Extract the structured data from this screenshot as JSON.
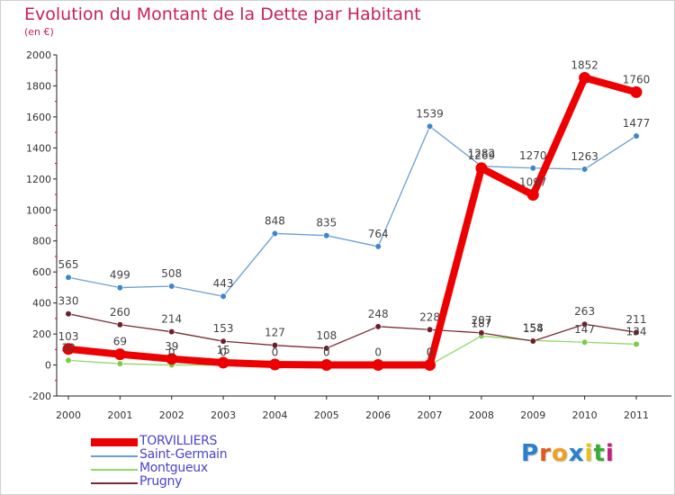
{
  "chart_data": {
    "type": "line",
    "title": "Evolution du Montant de la Dette par Habitant",
    "subtitle": "(en €)",
    "x": [
      "2000",
      "2001",
      "2002",
      "2003",
      "2004",
      "2005",
      "2006",
      "2007",
      "2008",
      "2009",
      "2010",
      "2011"
    ],
    "ylim": [
      -200,
      2000
    ],
    "yticks": [
      -200,
      0,
      200,
      400,
      600,
      800,
      1000,
      1200,
      1400,
      1600,
      1800,
      2000
    ],
    "grid": false,
    "legend_position": "bottom-left",
    "series": [
      {
        "name": "TORVILLIERS",
        "color": "#ee0000",
        "marker_color": "#ee0000",
        "values": [
          103,
          69,
          39,
          15,
          3,
          0,
          0,
          0,
          1269,
          1097,
          1852,
          1760
        ]
      },
      {
        "name": "Saint-Germain",
        "color": "#6a9fd4",
        "marker_color": "#3f86cc",
        "values": [
          565,
          499,
          508,
          443,
          848,
          835,
          764,
          1539,
          1282,
          1270,
          1263,
          1477
        ]
      },
      {
        "name": "Montgueux",
        "color": "#8fd86a",
        "marker_color": "#7acc45",
        "values": [
          30,
          8,
          0,
          0,
          0,
          0,
          0,
          0,
          187,
          158,
          147,
          134
        ]
      },
      {
        "name": "Prugny",
        "color": "#7a2a34",
        "marker_color": "#6e1e28",
        "values": [
          330,
          260,
          214,
          153,
          127,
          108,
          248,
          228,
          207,
          154,
          263,
          211
        ]
      }
    ],
    "data_labels": {
      "TORVILLIERS": [
        "103",
        "69",
        "39",
        "15",
        "",
        "",
        "",
        "0",
        "1269",
        "1097",
        "1852",
        "1760"
      ],
      "Saint-Germain": [
        "565",
        "499",
        "508",
        "443",
        "848",
        "835",
        "764",
        "1539",
        "1282",
        "1270",
        "1263",
        "1477"
      ],
      "Montgueux": [
        "30",
        "",
        "0",
        "0",
        "0",
        "0",
        "0",
        "0",
        "187",
        "158",
        "147",
        "134"
      ],
      "Prugny": [
        "330",
        "260",
        "214",
        "153",
        "127",
        "108",
        "248",
        "228",
        "207",
        "154",
        "263",
        "211"
      ]
    }
  },
  "logo": {
    "text": "Proxiti",
    "letters": [
      "P",
      "r",
      "o",
      "x",
      "i",
      "t",
      "i"
    ],
    "colors": [
      "#2a7fd0",
      "#e05a1a",
      "#f0a020",
      "#2a7fd0",
      "#e8c020",
      "#3aaa3a",
      "#c02080"
    ]
  }
}
